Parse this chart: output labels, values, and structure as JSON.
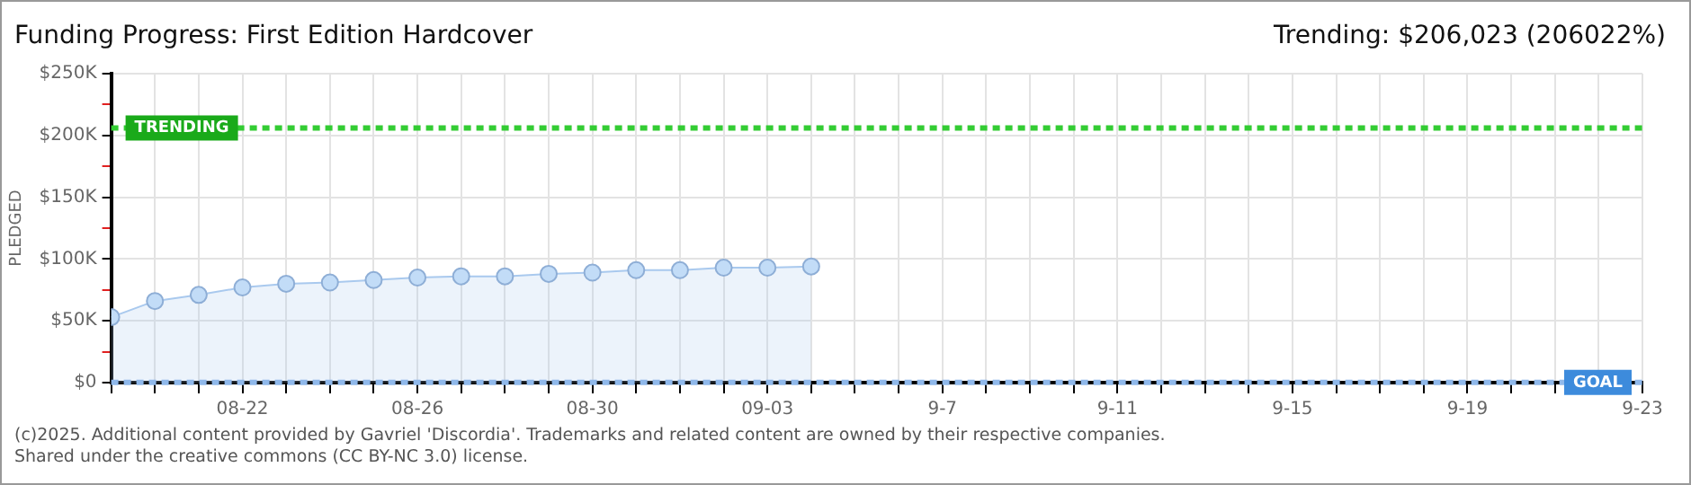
{
  "chart_data": {
    "type": "area",
    "title": "Funding Progress: First Edition Hardcover",
    "subtitle": "Trending: $206,023 (206022%)",
    "ylabel": "PLEDGED",
    "x": [
      "--08-19",
      "--08-20",
      "--08-21",
      "--08-22",
      "--08-23",
      "--08-24",
      "--08-25",
      "--08-26",
      "--08-27",
      "--08-28",
      "--08-29",
      "--08-30",
      "--08-31",
      "--09-01",
      "--09-02",
      "--09-03",
      "--09-04"
    ],
    "series": [
      {
        "color": "#a9c9ee",
        "values": [
          53000,
          66000,
          71000,
          77000,
          80000,
          81000,
          83000,
          85000,
          86000,
          86000,
          88000,
          89000,
          91000,
          91000,
          93000,
          93000,
          94000
        ]
      }
    ],
    "xlim": [
      "--08-19",
      "--09-23"
    ],
    "xticks": [
      {
        "value": "--08-19",
        "label": null
      },
      {
        "value": "--08-20",
        "label": null
      },
      {
        "value": "--08-21",
        "label": null
      },
      {
        "value": "--08-22",
        "label": "08-22"
      },
      {
        "value": "--08-23",
        "label": null
      },
      {
        "value": "--08-24",
        "label": null
      },
      {
        "value": "--08-25",
        "label": null
      },
      {
        "value": "--08-26",
        "label": "08-26"
      },
      {
        "value": "--08-27",
        "label": null
      },
      {
        "value": "--08-28",
        "label": null
      },
      {
        "value": "--08-29",
        "label": null
      },
      {
        "value": "--08-30",
        "label": "08-30"
      },
      {
        "value": "--08-31",
        "label": null
      },
      {
        "value": "--09-01",
        "label": null
      },
      {
        "value": "--09-02",
        "label": null
      },
      {
        "value": "--09-03",
        "label": "09-03"
      },
      {
        "value": "--09-04",
        "label": null
      },
      {
        "value": "--09-05",
        "label": null
      },
      {
        "value": "--09-06",
        "label": null
      },
      {
        "value": "--09-07",
        "label": "9-7"
      },
      {
        "value": "--09-08",
        "label": null
      },
      {
        "value": "--09-09",
        "label": null
      },
      {
        "value": "--09-10",
        "label": null
      },
      {
        "value": "--09-11",
        "label": "9-11"
      },
      {
        "value": "--09-12",
        "label": null
      },
      {
        "value": "--09-13",
        "label": null
      },
      {
        "value": "--09-14",
        "label": null
      },
      {
        "value": "--09-15",
        "label": "9-15"
      },
      {
        "value": "--09-16",
        "label": null
      },
      {
        "value": "--09-17",
        "label": null
      },
      {
        "value": "--09-18",
        "label": null
      },
      {
        "value": "--09-19",
        "label": "9-19"
      },
      {
        "value": "--09-20",
        "label": null
      },
      {
        "value": "--09-21",
        "label": null
      },
      {
        "value": "--09-22",
        "label": null
      },
      {
        "value": "--09-23",
        "label": "9-23"
      }
    ],
    "ylim": [
      0,
      250000
    ],
    "yticks": [
      {
        "value": 0,
        "label": "$0"
      },
      {
        "value": 25000,
        "label": null
      },
      {
        "value": 50000,
        "label": "$50K"
      },
      {
        "value": 75000,
        "label": null
      },
      {
        "value": 100000,
        "label": "$100K"
      },
      {
        "value": 125000,
        "label": null
      },
      {
        "value": 150000,
        "label": "$150K"
      },
      {
        "value": 175000,
        "label": null
      },
      {
        "value": 200000,
        "label": "$200K"
      },
      {
        "value": 225000,
        "label": null
      },
      {
        "value": 250000,
        "label": "$250K"
      }
    ],
    "ref_lines": [
      {
        "axis": "y",
        "value": 206023,
        "label": "TRENDING",
        "color": "#33cc33",
        "line_style": "dashed"
      },
      {
        "axis": "y",
        "value": 100,
        "label": "GOAL",
        "color": "#8fb8ea",
        "line_style": "dashed"
      }
    ],
    "grid": true,
    "marker": "circle",
    "legend": false,
    "annotations": [
      "(c)2025. Additional content provided by Gavriel 'Discordia'. Trademarks and related content are owned by their respective companies.",
      "Shared under the creative commons (CC BY-NC 3.0) license."
    ]
  }
}
